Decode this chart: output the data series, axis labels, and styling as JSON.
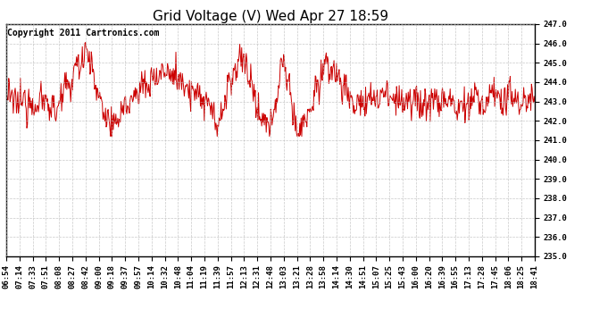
{
  "title": "Grid Voltage (V) Wed Apr 27 18:59",
  "copyright_text": "Copyright 2011 Cartronics.com",
  "line_color": "#cc0000",
  "bg_color": "#ffffff",
  "plot_bg_color": "#ffffff",
  "grid_color": "#bbbbbb",
  "ylim": [
    235.0,
    247.0
  ],
  "ytick_step": 1.0,
  "x_labels": [
    "06:54",
    "07:14",
    "07:33",
    "07:51",
    "08:08",
    "08:27",
    "08:42",
    "09:00",
    "09:18",
    "09:37",
    "09:57",
    "10:14",
    "10:32",
    "10:48",
    "11:04",
    "11:19",
    "11:39",
    "11:57",
    "12:13",
    "12:31",
    "12:48",
    "13:03",
    "13:21",
    "13:28",
    "13:58",
    "14:14",
    "14:30",
    "14:51",
    "15:07",
    "15:25",
    "15:43",
    "16:00",
    "16:20",
    "16:39",
    "16:55",
    "17:13",
    "17:28",
    "17:45",
    "18:06",
    "18:25",
    "18:41"
  ],
  "title_fontsize": 11,
  "axis_fontsize": 6.5,
  "copyright_fontsize": 7,
  "line_width": 0.7,
  "figsize": [
    6.9,
    3.75
  ],
  "dpi": 100
}
